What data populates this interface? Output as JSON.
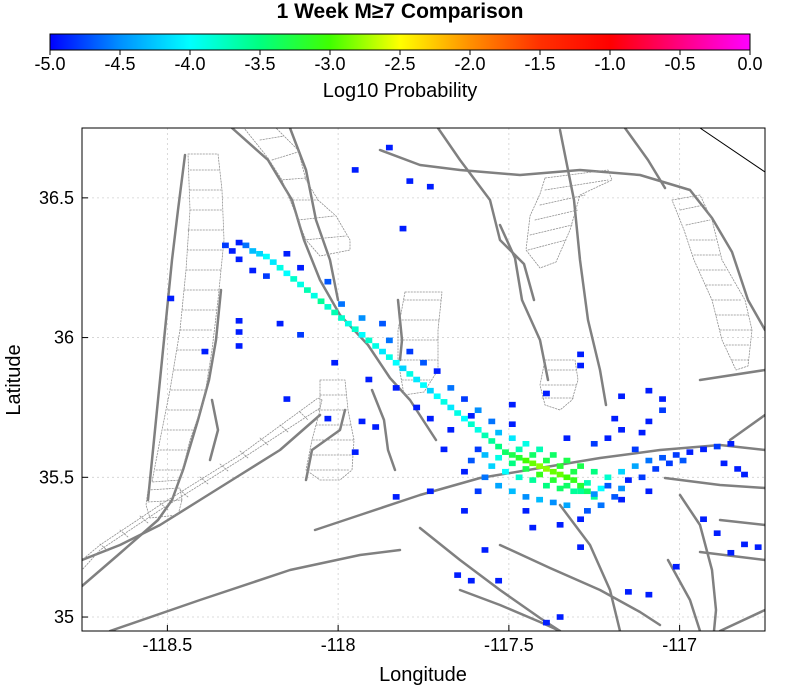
{
  "chart_data": {
    "type": "heatmap",
    "title": "1 Week M≥7 Comparison",
    "colorbar": {
      "label": "Log10 Probability",
      "range": [
        -5.0,
        0.0
      ],
      "ticks": [
        "-5.0",
        "-4.5",
        "-4.0",
        "-3.5",
        "-3.0",
        "-2.5",
        "-2.0",
        "-1.5",
        "-1.0",
        "-0.5",
        "0.0"
      ],
      "colors": [
        "#0000ff",
        "#0090ff",
        "#00ffff",
        "#00ff80",
        "#40ff00",
        "#ffff00",
        "#ff9000",
        "#ff3000",
        "#ff0000",
        "#ff0080",
        "#ff00ff"
      ]
    },
    "xlabel": "Longitude",
    "ylabel": "Latitude",
    "xlim": [
      -118.75,
      -116.75
    ],
    "ylim": [
      34.95,
      36.75
    ],
    "xticks": [
      -118.5,
      -118,
      -117.5,
      -117
    ],
    "xtick_labels": [
      "-118.5",
      "-118",
      "-117.5",
      "-117"
    ],
    "yticks": [
      35,
      35.5,
      36,
      36.5
    ],
    "ytick_labels": [
      "35",
      "35.5",
      "36",
      "36.5"
    ],
    "grid": true,
    "cell_size_deg": 0.02,
    "cells": [
      [
        -118.29,
        36.34,
        -4.9
      ],
      [
        -118.27,
        36.33,
        -4.6
      ],
      [
        -118.25,
        36.31,
        -4.3
      ],
      [
        -118.23,
        36.3,
        -4.2
      ],
      [
        -118.21,
        36.29,
        -4.0
      ],
      [
        -118.19,
        36.27,
        -4.1
      ],
      [
        -118.17,
        36.25,
        -3.9
      ],
      [
        -118.15,
        36.23,
        -4.0
      ],
      [
        -118.13,
        36.21,
        -3.8
      ],
      [
        -118.11,
        36.19,
        -3.9
      ],
      [
        -118.09,
        36.17,
        -3.7
      ],
      [
        -118.07,
        36.15,
        -3.9
      ],
      [
        -118.05,
        36.13,
        -3.6
      ],
      [
        -118.03,
        36.11,
        -3.8
      ],
      [
        -118.01,
        36.09,
        -3.7
      ],
      [
        -117.99,
        36.07,
        -3.8
      ],
      [
        -117.97,
        36.05,
        -3.9
      ],
      [
        -117.95,
        36.03,
        -3.8
      ],
      [
        -117.93,
        36.01,
        -4.0
      ],
      [
        -117.91,
        35.99,
        -3.8
      ],
      [
        -117.89,
        35.97,
        -3.9
      ],
      [
        -117.87,
        35.95,
        -4.1
      ],
      [
        -117.85,
        35.93,
        -3.9
      ],
      [
        -117.83,
        35.91,
        -4.0
      ],
      [
        -117.81,
        35.89,
        -4.2
      ],
      [
        -117.79,
        35.87,
        -3.9
      ],
      [
        -117.77,
        35.85,
        -4.1
      ],
      [
        -117.75,
        35.83,
        -4.0
      ],
      [
        -117.73,
        35.81,
        -4.2
      ],
      [
        -117.71,
        35.79,
        -4.0
      ],
      [
        -117.69,
        35.77,
        -3.9
      ],
      [
        -117.67,
        35.75,
        -4.1
      ],
      [
        -117.65,
        35.73,
        -3.9
      ],
      [
        -117.63,
        35.71,
        -4.0
      ],
      [
        -117.61,
        35.69,
        -3.8
      ],
      [
        -117.59,
        35.67,
        -3.9
      ],
      [
        -117.57,
        35.65,
        -3.7
      ],
      [
        -117.55,
        35.63,
        -3.6
      ],
      [
        -117.53,
        35.61,
        -3.5
      ],
      [
        -117.51,
        35.59,
        -3.4
      ],
      [
        -117.49,
        35.58,
        -3.3
      ],
      [
        -117.47,
        35.57,
        -3.2
      ],
      [
        -117.45,
        35.56,
        -3.0
      ],
      [
        -117.43,
        35.55,
        -2.9
      ],
      [
        -117.41,
        35.54,
        -2.8
      ],
      [
        -117.39,
        35.53,
        -2.8
      ],
      [
        -117.37,
        35.52,
        -2.9
      ],
      [
        -117.35,
        35.51,
        -2.9
      ],
      [
        -117.33,
        35.5,
        -3.0
      ],
      [
        -117.31,
        35.49,
        -3.1
      ],
      [
        -117.29,
        35.47,
        -3.2
      ],
      [
        -117.27,
        35.45,
        -3.4
      ],
      [
        -117.25,
        35.43,
        -3.6
      ],
      [
        -118.33,
        36.33,
        -4.8
      ],
      [
        -118.31,
        36.31,
        -4.9
      ],
      [
        -118.15,
        36.3,
        -4.9
      ],
      [
        -118.21,
        36.22,
        -4.8
      ],
      [
        -118.11,
        36.25,
        -4.9
      ],
      [
        -118.03,
        36.2,
        -4.7
      ],
      [
        -117.99,
        36.12,
        -4.6
      ],
      [
        -117.93,
        36.07,
        -4.5
      ],
      [
        -117.87,
        36.05,
        -4.7
      ],
      [
        -117.85,
        35.99,
        -4.6
      ],
      [
        -117.79,
        35.95,
        -4.8
      ],
      [
        -117.75,
        35.91,
        -4.7
      ],
      [
        -117.71,
        35.88,
        -4.9
      ],
      [
        -117.67,
        35.82,
        -4.6
      ],
      [
        -117.63,
        35.78,
        -4.8
      ],
      [
        -117.59,
        35.74,
        -4.5
      ],
      [
        -117.55,
        35.7,
        -4.6
      ],
      [
        -117.53,
        35.66,
        -4.3
      ],
      [
        -117.49,
        35.64,
        -4.1
      ],
      [
        -117.45,
        35.62,
        -3.9
      ],
      [
        -117.41,
        35.6,
        -3.7
      ],
      [
        -117.37,
        35.58,
        -3.4
      ],
      [
        -117.33,
        35.56,
        -3.3
      ],
      [
        -117.29,
        35.54,
        -3.3
      ],
      [
        -117.25,
        35.52,
        -3.5
      ],
      [
        -117.21,
        35.5,
        -3.8
      ],
      [
        -117.17,
        35.52,
        -4.2
      ],
      [
        -117.13,
        35.54,
        -4.4
      ],
      [
        -117.09,
        35.56,
        -4.6
      ],
      [
        -117.05,
        35.57,
        -4.7
      ],
      [
        -117.01,
        35.58,
        -4.8
      ],
      [
        -116.97,
        35.59,
        -4.9
      ],
      [
        -116.93,
        35.6,
        -4.9
      ],
      [
        -116.89,
        35.61,
        -4.8
      ],
      [
        -116.85,
        35.62,
        -4.9
      ],
      [
        -117.55,
        35.54,
        -4.2
      ],
      [
        -117.51,
        35.52,
        -4.0
      ],
      [
        -117.47,
        35.5,
        -3.8
      ],
      [
        -117.43,
        35.49,
        -3.6
      ],
      [
        -117.39,
        35.47,
        -3.5
      ],
      [
        -117.35,
        35.46,
        -3.4
      ],
      [
        -117.31,
        35.45,
        -3.6
      ],
      [
        -117.57,
        35.5,
        -4.6
      ],
      [
        -117.53,
        35.47,
        -4.4
      ],
      [
        -117.49,
        35.45,
        -4.3
      ],
      [
        -117.45,
        35.43,
        -4.5
      ],
      [
        -117.41,
        35.42,
        -4.3
      ],
      [
        -117.37,
        35.41,
        -4.5
      ],
      [
        -117.33,
        35.4,
        -4.4
      ],
      [
        -117.27,
        35.38,
        -4.7
      ],
      [
        -117.61,
        35.56,
        -4.7
      ],
      [
        -117.59,
        35.6,
        -4.8
      ],
      [
        -117.63,
        35.52,
        -4.9
      ],
      [
        -117.59,
        35.45,
        -4.8
      ],
      [
        -117.45,
        35.38,
        -4.9
      ],
      [
        -117.23,
        35.4,
        -4.6
      ],
      [
        -117.19,
        35.43,
        -4.7
      ],
      [
        -117.17,
        35.46,
        -4.5
      ],
      [
        -117.13,
        35.6,
        -4.8
      ],
      [
        -117.25,
        35.62,
        -4.8
      ],
      [
        -117.21,
        35.64,
        -4.9
      ],
      [
        -117.33,
        35.64,
        -4.9
      ],
      [
        -117.49,
        35.69,
        -4.9
      ],
      [
        -117.77,
        35.75,
        -4.9
      ],
      [
        -117.83,
        35.82,
        -4.9
      ],
      [
        -118.49,
        36.14,
        -4.9
      ],
      [
        -118.29,
        36.06,
        -4.9
      ],
      [
        -118.29,
        36.02,
        -4.9
      ],
      [
        -118.29,
        35.97,
        -4.9
      ],
      [
        -118.17,
        36.05,
        -4.9
      ],
      [
        -118.11,
        36.01,
        -4.8
      ],
      [
        -118.01,
        35.91,
        -4.9
      ],
      [
        -117.91,
        35.85,
        -4.9
      ],
      [
        -117.73,
        35.71,
        -4.9
      ],
      [
        -117.67,
        35.67,
        -4.9
      ],
      [
        -117.69,
        35.6,
        -4.9
      ],
      [
        -117.61,
        35.72,
        -4.9
      ],
      [
        -117.49,
        35.76,
        -4.9
      ],
      [
        -117.39,
        35.8,
        -4.9
      ],
      [
        -117.29,
        35.9,
        -4.9
      ],
      [
        -117.29,
        35.94,
        -4.9
      ],
      [
        -117.09,
        35.81,
        -4.9
      ],
      [
        -117.17,
        35.79,
        -4.9
      ],
      [
        -117.05,
        35.78,
        -4.9
      ],
      [
        -117.05,
        35.74,
        -4.8
      ],
      [
        -117.19,
        35.71,
        -4.9
      ],
      [
        -117.17,
        35.67,
        -4.9
      ],
      [
        -117.11,
        35.66,
        -4.9
      ],
      [
        -117.09,
        35.7,
        -4.9
      ],
      [
        -117.81,
        36.39,
        -4.9
      ],
      [
        -117.95,
        36.6,
        -4.9
      ],
      [
        -117.85,
        36.68,
        -4.9
      ],
      [
        -117.79,
        36.56,
        -4.9
      ],
      [
        -117.73,
        36.54,
        -4.9
      ],
      [
        -118.29,
        36.28,
        -4.9
      ],
      [
        -118.25,
        36.24,
        -4.9
      ],
      [
        -118.39,
        35.95,
        -4.9
      ],
      [
        -118.15,
        35.78,
        -4.9
      ],
      [
        -118.03,
        35.71,
        -4.9
      ],
      [
        -117.89,
        35.68,
        -4.9
      ],
      [
        -117.95,
        35.59,
        -4.9
      ],
      [
        -117.93,
        35.7,
        -4.9
      ],
      [
        -117.63,
        35.38,
        -4.9
      ],
      [
        -117.73,
        35.45,
        -4.9
      ],
      [
        -117.83,
        35.43,
        -4.9
      ],
      [
        -117.43,
        35.32,
        -4.9
      ],
      [
        -117.35,
        35.33,
        -4.9
      ],
      [
        -117.29,
        35.35,
        -4.9
      ],
      [
        -117.17,
        35.42,
        -4.9
      ],
      [
        -117.29,
        35.25,
        -4.9
      ],
      [
        -117.57,
        35.24,
        -4.9
      ],
      [
        -117.61,
        35.13,
        -4.9
      ],
      [
        -117.65,
        35.15,
        -4.9
      ],
      [
        -117.53,
        35.13,
        -4.9
      ],
      [
        -117.35,
        35.0,
        -4.9
      ],
      [
        -117.39,
        34.98,
        -4.9
      ],
      [
        -117.15,
        35.09,
        -4.9
      ],
      [
        -117.09,
        35.08,
        -4.9
      ],
      [
        -117.01,
        35.18,
        -4.9
      ],
      [
        -116.93,
        35.35,
        -4.9
      ],
      [
        -116.89,
        35.3,
        -4.9
      ],
      [
        -116.85,
        35.23,
        -4.9
      ],
      [
        -116.81,
        35.26,
        -4.9
      ],
      [
        -116.77,
        35.25,
        -4.9
      ],
      [
        -116.87,
        35.55,
        -4.9
      ],
      [
        -116.83,
        35.53,
        -4.9
      ],
      [
        -116.81,
        35.51,
        -4.9
      ],
      [
        -117.07,
        35.53,
        -4.8
      ],
      [
        -117.03,
        35.55,
        -4.8
      ],
      [
        -116.99,
        35.56,
        -4.7
      ],
      [
        -117.11,
        35.5,
        -4.8
      ],
      [
        -117.15,
        35.49,
        -4.9
      ],
      [
        -117.21,
        35.47,
        -4.7
      ],
      [
        -117.09,
        35.45,
        -4.9
      ],
      [
        -117.25,
        35.44,
        -4.5
      ],
      [
        -117.35,
        35.54,
        -3.2
      ],
      [
        -117.31,
        35.52,
        -3.3
      ],
      [
        -117.39,
        35.56,
        -3.3
      ],
      [
        -117.43,
        35.58,
        -3.4
      ],
      [
        -117.47,
        35.6,
        -3.7
      ],
      [
        -117.37,
        35.49,
        -3.2
      ],
      [
        -117.41,
        35.51,
        -3.1
      ],
      [
        -117.33,
        35.47,
        -3.4
      ],
      [
        -117.45,
        35.53,
        -3.3
      ],
      [
        -117.49,
        35.55,
        -3.5
      ],
      [
        -117.53,
        35.57,
        -3.9
      ],
      [
        -117.57,
        35.58,
        -4.3
      ],
      [
        -117.29,
        35.45,
        -3.6
      ],
      [
        -117.27,
        35.48,
        -3.7
      ],
      [
        -117.23,
        35.46,
        -4.0
      ]
    ]
  }
}
